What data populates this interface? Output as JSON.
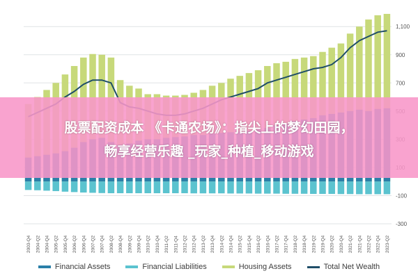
{
  "banner": {
    "line1": "股票配资成本 《卡通农场》：指尖上的梦幻田园，",
    "line2": "畅享经营乐趣  _玩家_种植_移动游戏"
  },
  "chart_data": {
    "type": "area",
    "y_ticks": [
      -300,
      -100,
      100,
      300,
      500,
      700,
      900,
      1100
    ],
    "y_tick_labels": [
      "-300",
      "-100",
      "100",
      "300",
      "500",
      "700",
      "900",
      "1,100"
    ],
    "ylim": [
      -300,
      1180
    ],
    "x_labels": [
      "2003-Q4",
      "2004-Q2",
      "2004-Q4",
      "2005-Q2",
      "2005-Q4",
      "2006-Q2",
      "2006-Q4",
      "2007-Q2",
      "2007-Q4",
      "2008-Q2",
      "2008-Q4",
      "2009-Q2",
      "2009-Q4",
      "2010-Q2",
      "2010-Q4",
      "2011-Q2",
      "2011-Q4",
      "2012-Q2",
      "2012-Q4",
      "2013-Q2",
      "2013-Q4",
      "2014-Q2",
      "2014-Q4",
      "2015-Q2",
      "2015-Q4",
      "2016-Q2",
      "2016-Q4",
      "2017-Q2",
      "2017-Q4",
      "2018-Q2",
      "2018-Q4",
      "2019-Q2",
      "2019-Q4",
      "2020-Q2",
      "2020-Q4",
      "2021-Q2",
      "2021-Q4",
      "2022-Q2",
      "2022-Q4",
      "2023-Q2"
    ],
    "series": [
      {
        "name": "Financial Assets",
        "color": "#2a7fa8",
        "values": [
          170,
          180,
          190,
          200,
          215,
          240,
          280,
          300,
          310,
          280,
          260,
          270,
          290,
          300,
          300,
          310,
          315,
          320,
          330,
          330,
          340,
          345,
          350,
          355,
          360,
          370,
          380,
          400,
          410,
          430,
          440,
          450,
          470,
          480,
          490,
          500,
          510,
          500,
          515,
          520
        ]
      },
      {
        "name": "Financial Liabilities",
        "color": "#5bc3cf",
        "values": [
          -60,
          -62,
          -65,
          -68,
          -72,
          -75,
          -78,
          -80,
          -82,
          -83,
          -83,
          -83,
          -83,
          -83,
          -83,
          -83,
          -83,
          -83,
          -84,
          -84,
          -84,
          -84,
          -85,
          -85,
          -85,
          -86,
          -86,
          -86,
          -87,
          -87,
          -87,
          -88,
          -88,
          -88,
          -89,
          -89,
          -90,
          -90,
          -90,
          -90
        ]
      },
      {
        "name": "Housing Assets",
        "color": "#c7d97a",
        "values": [
          550,
          600,
          650,
          700,
          760,
          820,
          880,
          905,
          900,
          880,
          720,
          680,
          660,
          620,
          620,
          610,
          610,
          615,
          630,
          650,
          680,
          700,
          730,
          750,
          770,
          790,
          820,
          840,
          850,
          870,
          880,
          890,
          920,
          950,
          980,
          1050,
          1100,
          1150,
          1180,
          1190
        ]
      },
      {
        "name": "Total Net Wealth",
        "color": "#1f4e68",
        "values": [
          460,
          490,
          520,
          550,
          600,
          640,
          690,
          720,
          720,
          700,
          560,
          530,
          520,
          500,
          480,
          470,
          470,
          480,
          500,
          520,
          550,
          580,
          600,
          620,
          640,
          660,
          700,
          720,
          740,
          760,
          780,
          800,
          810,
          830,
          880,
          950,
          1000,
          1030,
          1060,
          1070
        ]
      }
    ]
  }
}
